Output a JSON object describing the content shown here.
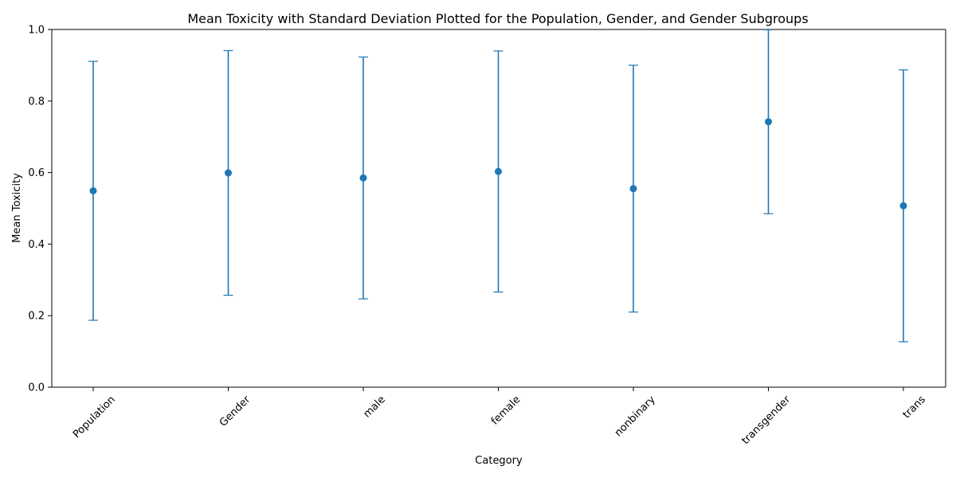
{
  "chart_data": {
    "type": "scatter",
    "title": "Mean Toxicity with Standard Deviation Plotted for the Population, Gender, and Gender Subgroups",
    "xlabel": "Category",
    "ylabel": "Mean Toxicity",
    "ylim": [
      0.0,
      1.0
    ],
    "yticks": [
      "0.0",
      "0.2",
      "0.4",
      "0.6",
      "0.8",
      "1.0"
    ],
    "categories": [
      "Population",
      "Gender",
      "male",
      "female",
      "nonbinary",
      "transgender",
      "trans"
    ],
    "mean": [
      0.549,
      0.599,
      0.585,
      0.603,
      0.555,
      0.742,
      0.507
    ],
    "std": [
      0.362,
      0.342,
      0.338,
      0.337,
      0.345,
      0.257,
      0.38
    ],
    "grid": false,
    "legend": "none",
    "color": "#1f77b4"
  }
}
